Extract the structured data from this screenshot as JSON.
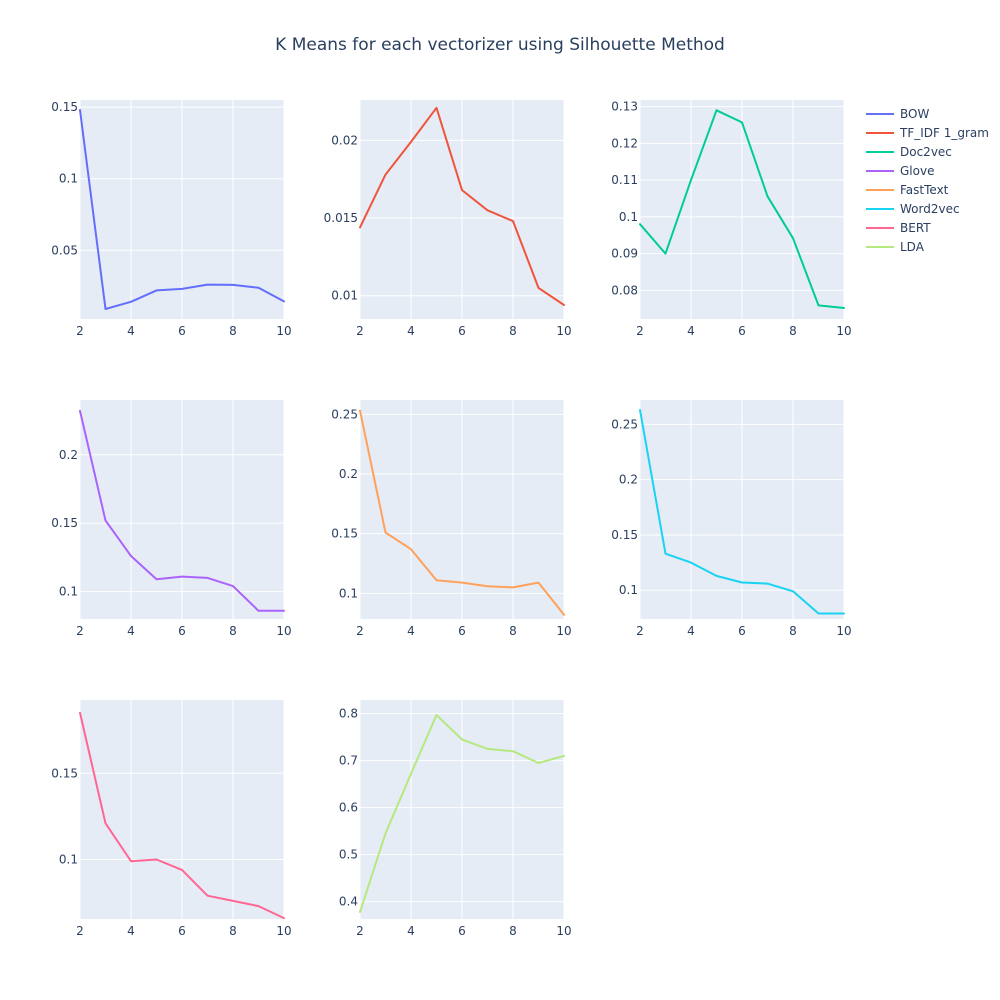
{
  "title": "K Means for each vectorizer using Silhouette Method",
  "chart_data": [
    {
      "type": "line",
      "name": "BOW",
      "color": "#636efa",
      "x": [
        2,
        3,
        4,
        5,
        6,
        7,
        8,
        9,
        10
      ],
      "values": [
        0.148,
        0.009,
        0.014,
        0.022,
        0.023,
        0.026,
        0.0258,
        0.0238,
        0.0143
      ],
      "xlim": [
        2,
        10
      ],
      "ylim": [
        0.002,
        0.155
      ],
      "xticks": [
        2,
        4,
        6,
        8,
        10
      ],
      "yticks": [
        0.05,
        0.1,
        0.15
      ],
      "ytick_labels": [
        "0.05",
        "0.1",
        "0.15"
      ]
    },
    {
      "type": "line",
      "name": "TF_IDF 1_gram",
      "color": "#ef553b",
      "x": [
        2,
        3,
        4,
        5,
        6,
        7,
        8,
        9,
        10
      ],
      "values": [
        0.0144,
        0.0178,
        0.0199,
        0.0221,
        0.0168,
        0.0155,
        0.0148,
        0.0105,
        0.0094
      ],
      "xlim": [
        2,
        10
      ],
      "ylim": [
        0.0085,
        0.0226
      ],
      "xticks": [
        2,
        4,
        6,
        8,
        10
      ],
      "yticks": [
        0.01,
        0.015,
        0.02
      ],
      "ytick_labels": [
        "0.01",
        "0.015",
        "0.02"
      ]
    },
    {
      "type": "line",
      "name": "Doc2vec",
      "color": "#00cc96",
      "x": [
        2,
        3,
        4,
        5,
        6,
        7,
        8,
        9,
        10
      ],
      "values": [
        0.098,
        0.09,
        0.11,
        0.129,
        0.1257,
        0.1056,
        0.0942,
        0.0759,
        0.0752
      ],
      "xlim": [
        2,
        10
      ],
      "ylim": [
        0.0722,
        0.1318
      ],
      "xticks": [
        2,
        4,
        6,
        8,
        10
      ],
      "yticks": [
        0.08,
        0.09,
        0.1,
        0.11,
        0.12,
        0.13
      ],
      "ytick_labels": [
        "0.08",
        "0.09",
        "0.1",
        "0.11",
        "0.12",
        "0.13"
      ]
    },
    {
      "type": "line",
      "name": "Glove",
      "color": "#ab63fa",
      "x": [
        2,
        3,
        4,
        5,
        6,
        7,
        8,
        9,
        10
      ],
      "values": [
        0.232,
        0.152,
        0.126,
        0.109,
        0.111,
        0.11,
        0.104,
        0.086,
        0.086
      ],
      "xlim": [
        2,
        10
      ],
      "ylim": [
        0.08,
        0.24
      ],
      "xticks": [
        2,
        4,
        6,
        8,
        10
      ],
      "yticks": [
        0.1,
        0.15,
        0.2
      ],
      "ytick_labels": [
        "0.1",
        "0.15",
        "0.2"
      ]
    },
    {
      "type": "line",
      "name": "FastText",
      "color": "#ffa15a",
      "x": [
        2,
        3,
        4,
        5,
        6,
        7,
        8,
        9,
        10
      ],
      "values": [
        0.253,
        0.151,
        0.137,
        0.111,
        0.109,
        0.106,
        0.105,
        0.109,
        0.082
      ],
      "xlim": [
        2,
        10
      ],
      "ylim": [
        0.0785,
        0.262
      ],
      "xticks": [
        2,
        4,
        6,
        8,
        10
      ],
      "yticks": [
        0.1,
        0.15,
        0.2,
        0.25
      ],
      "ytick_labels": [
        "0.1",
        "0.15",
        "0.2",
        "0.25"
      ]
    },
    {
      "type": "line",
      "name": "Word2vec",
      "color": "#19d3f3",
      "x": [
        2,
        3,
        4,
        5,
        6,
        7,
        8,
        9,
        10
      ],
      "values": [
        0.263,
        0.133,
        0.125,
        0.113,
        0.107,
        0.106,
        0.099,
        0.079,
        0.079
      ],
      "xlim": [
        2,
        10
      ],
      "ylim": [
        0.074,
        0.272
      ],
      "xticks": [
        2,
        4,
        6,
        8,
        10
      ],
      "yticks": [
        0.1,
        0.15,
        0.2,
        0.25
      ],
      "ytick_labels": [
        "0.1",
        "0.15",
        "0.2",
        "0.25"
      ]
    },
    {
      "type": "line",
      "name": "BERT",
      "color": "#ff6692",
      "x": [
        2,
        3,
        4,
        5,
        6,
        7,
        8,
        9,
        10
      ],
      "values": [
        0.185,
        0.121,
        0.099,
        0.1,
        0.094,
        0.079,
        0.076,
        0.073,
        0.066
      ],
      "xlim": [
        2,
        10
      ],
      "ylim": [
        0.0655,
        0.1925
      ],
      "xticks": [
        2,
        4,
        6,
        8,
        10
      ],
      "yticks": [
        0.1,
        0.15
      ],
      "ytick_labels": [
        "0.1",
        "0.15"
      ]
    },
    {
      "type": "line",
      "name": "LDA",
      "color": "#b6e880",
      "x": [
        2,
        3,
        4,
        5,
        6,
        7,
        8,
        9,
        10
      ],
      "values": [
        0.378,
        0.545,
        0.672,
        0.797,
        0.745,
        0.725,
        0.72,
        0.695,
        0.71
      ],
      "xlim": [
        2,
        10
      ],
      "ylim": [
        0.363,
        0.829
      ],
      "xticks": [
        2,
        4,
        6,
        8,
        10
      ],
      "yticks": [
        0.4,
        0.5,
        0.6,
        0.7,
        0.8
      ],
      "ytick_labels": [
        "0.4",
        "0.5",
        "0.6",
        "0.7",
        "0.8"
      ]
    }
  ],
  "legend": {
    "position": "top-right",
    "items": [
      "BOW",
      "TF_IDF 1_gram",
      "Doc2vec",
      "Glove",
      "FastText",
      "Word2vec",
      "BERT",
      "LDA"
    ]
  }
}
